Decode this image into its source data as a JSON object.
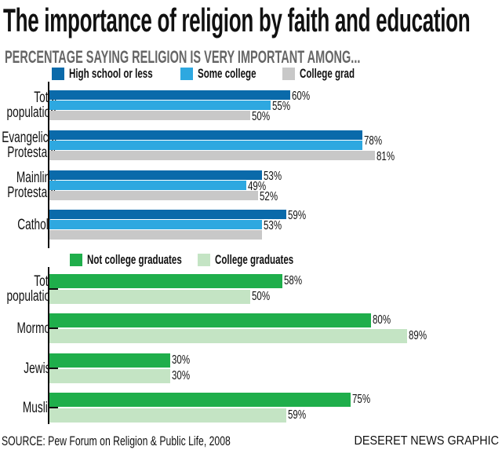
{
  "chart_data": [
    {
      "type": "bar",
      "orientation": "horizontal",
      "title": "The importance of religion by faith and education",
      "subtitle": "PERCENTAGE SAYING RELIGION IS VERY IMPORTANT AMONG...",
      "categories": [
        [
          "Total",
          "population"
        ],
        [
          "Evangelical",
          "Protestant"
        ],
        [
          "Mainline",
          "Protestant"
        ],
        [
          "Catholic"
        ]
      ],
      "series": [
        {
          "name": "High school or less",
          "color": "#0a6aaa",
          "values": [
            60,
            78,
            53,
            59
          ],
          "labels": [
            "60%",
            "78%",
            "53%",
            "59%"
          ]
        },
        {
          "name": "Some college",
          "color": "#2ea8e0",
          "values": [
            55,
            78,
            49,
            53
          ],
          "labels": [
            "55%",
            "",
            "49%",
            "53%"
          ]
        },
        {
          "name": "College grad",
          "color": "#c8c8c8",
          "values": [
            50,
            81,
            52,
            53
          ],
          "labels": [
            "50%",
            "81%",
            "52%",
            ""
          ]
        }
      ],
      "xlim": [
        0,
        100
      ],
      "legend": "top"
    },
    {
      "type": "bar",
      "orientation": "horizontal",
      "categories": [
        [
          "Total",
          "population"
        ],
        [
          "Mormon"
        ],
        [
          "Jewish"
        ],
        [
          "Muslim"
        ]
      ],
      "series": [
        {
          "name": "Not college graduates",
          "color": "#1fae4b",
          "values": [
            58,
            80,
            30,
            75
          ],
          "labels": [
            "58%",
            "80%",
            "30%",
            "75%"
          ]
        },
        {
          "name": "College graduates",
          "color": "#c4e4c4",
          "values": [
            50,
            89,
            30,
            59
          ],
          "labels": [
            "50%",
            "89%",
            "30%",
            "59%"
          ]
        }
      ],
      "xlim": [
        0,
        100
      ],
      "legend": "top"
    }
  ],
  "source": "SOURCE: Pew Forum on Religion & Public Life, 2008",
  "credit": "DESERET NEWS GRAPHIC"
}
